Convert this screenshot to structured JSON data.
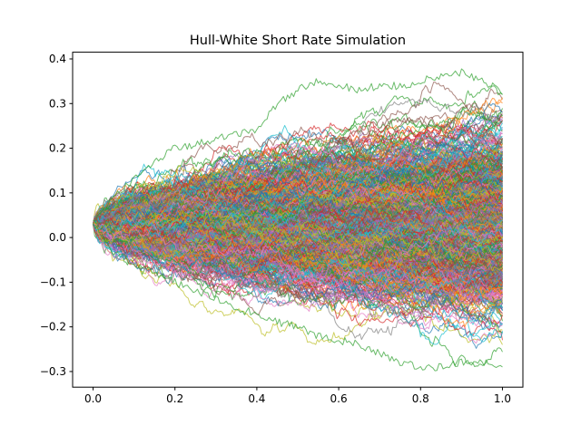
{
  "chart_data": {
    "type": "line",
    "title": "Hull-White Short Rate Simulation",
    "xlabel": "",
    "ylabel": "",
    "xlim": [
      -0.05,
      1.05
    ],
    "ylim": [
      -0.335,
      0.415
    ],
    "x_ticks": [
      0.0,
      0.2,
      0.4,
      0.6,
      0.8,
      1.0
    ],
    "x_tick_labels": [
      "0.0",
      "0.2",
      "0.4",
      "0.6",
      "0.8",
      "1.0"
    ],
    "y_ticks": [
      -0.3,
      -0.2,
      -0.1,
      0.0,
      0.1,
      0.2,
      0.3,
      0.4
    ],
    "y_tick_labels": [
      "−0.3",
      "−0.2",
      "−0.1",
      "0.0",
      "0.1",
      "0.2",
      "0.3",
      "0.4"
    ],
    "grid": false,
    "legend": "none",
    "x": [
      0.0,
      0.05,
      0.1,
      0.15,
      0.2,
      0.25,
      0.3,
      0.35,
      0.4,
      0.45,
      0.5,
      0.55,
      0.6,
      0.65,
      0.7,
      0.75,
      0.8,
      0.85,
      0.9,
      0.95,
      1.0
    ],
    "initial_rate": 0.03,
    "series_count": 1000,
    "envelope": {
      "upper": [
        0.03,
        0.09,
        0.13,
        0.17,
        0.2,
        0.21,
        0.22,
        0.23,
        0.24,
        0.3,
        0.33,
        0.35,
        0.34,
        0.33,
        0.34,
        0.34,
        0.35,
        0.36,
        0.37,
        0.35,
        0.32
      ],
      "lower": [
        0.03,
        -0.03,
        -0.06,
        -0.08,
        -0.1,
        -0.12,
        -0.14,
        -0.16,
        -0.17,
        -0.19,
        -0.2,
        -0.22,
        -0.23,
        -0.24,
        -0.26,
        -0.28,
        -0.29,
        -0.29,
        -0.28,
        -0.28,
        -0.29
      ]
    },
    "colors": [
      "#1f77b4",
      "#ff7f0e",
      "#2ca02c",
      "#d62728",
      "#9467bd",
      "#8c564b",
      "#e377c2",
      "#7f7f7f",
      "#bcbd22",
      "#17becf"
    ]
  }
}
